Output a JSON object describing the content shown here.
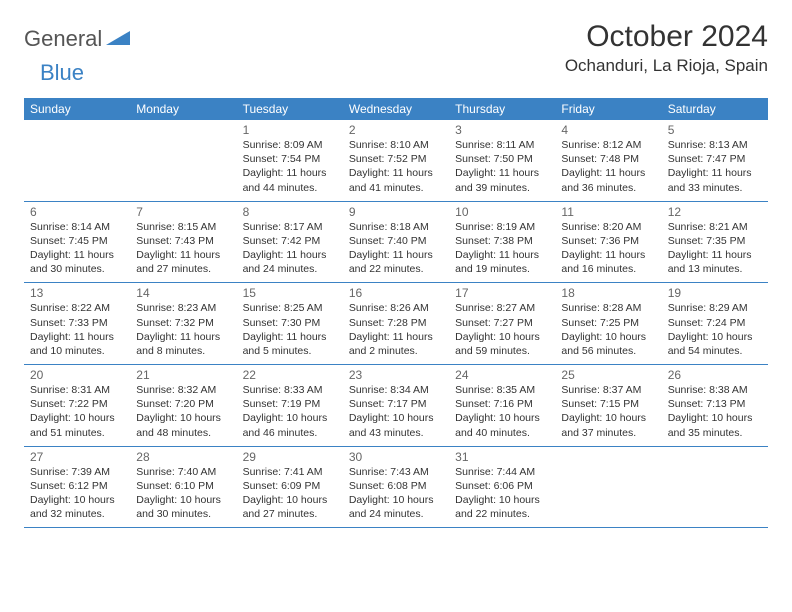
{
  "brand": {
    "part1": "General",
    "part2": "Blue"
  },
  "title": "October 2024",
  "location": "Ochanduri, La Rioja, Spain",
  "colors": {
    "header_bg": "#3b82c4",
    "header_text": "#ffffff",
    "border": "#3b82c4",
    "body_text": "#333333",
    "daynum": "#666666",
    "background": "#ffffff"
  },
  "dayNames": [
    "Sunday",
    "Monday",
    "Tuesday",
    "Wednesday",
    "Thursday",
    "Friday",
    "Saturday"
  ],
  "layout": {
    "columns": 7,
    "rows": 5,
    "leading_blanks": 2
  },
  "days": [
    {
      "n": "1",
      "sr": "8:09 AM",
      "ss": "7:54 PM",
      "dl": "11 hours and 44 minutes."
    },
    {
      "n": "2",
      "sr": "8:10 AM",
      "ss": "7:52 PM",
      "dl": "11 hours and 41 minutes."
    },
    {
      "n": "3",
      "sr": "8:11 AM",
      "ss": "7:50 PM",
      "dl": "11 hours and 39 minutes."
    },
    {
      "n": "4",
      "sr": "8:12 AM",
      "ss": "7:48 PM",
      "dl": "11 hours and 36 minutes."
    },
    {
      "n": "5",
      "sr": "8:13 AM",
      "ss": "7:47 PM",
      "dl": "11 hours and 33 minutes."
    },
    {
      "n": "6",
      "sr": "8:14 AM",
      "ss": "7:45 PM",
      "dl": "11 hours and 30 minutes."
    },
    {
      "n": "7",
      "sr": "8:15 AM",
      "ss": "7:43 PM",
      "dl": "11 hours and 27 minutes."
    },
    {
      "n": "8",
      "sr": "8:17 AM",
      "ss": "7:42 PM",
      "dl": "11 hours and 24 minutes."
    },
    {
      "n": "9",
      "sr": "8:18 AM",
      "ss": "7:40 PM",
      "dl": "11 hours and 22 minutes."
    },
    {
      "n": "10",
      "sr": "8:19 AM",
      "ss": "7:38 PM",
      "dl": "11 hours and 19 minutes."
    },
    {
      "n": "11",
      "sr": "8:20 AM",
      "ss": "7:36 PM",
      "dl": "11 hours and 16 minutes."
    },
    {
      "n": "12",
      "sr": "8:21 AM",
      "ss": "7:35 PM",
      "dl": "11 hours and 13 minutes."
    },
    {
      "n": "13",
      "sr": "8:22 AM",
      "ss": "7:33 PM",
      "dl": "11 hours and 10 minutes."
    },
    {
      "n": "14",
      "sr": "8:23 AM",
      "ss": "7:32 PM",
      "dl": "11 hours and 8 minutes."
    },
    {
      "n": "15",
      "sr": "8:25 AM",
      "ss": "7:30 PM",
      "dl": "11 hours and 5 minutes."
    },
    {
      "n": "16",
      "sr": "8:26 AM",
      "ss": "7:28 PM",
      "dl": "11 hours and 2 minutes."
    },
    {
      "n": "17",
      "sr": "8:27 AM",
      "ss": "7:27 PM",
      "dl": "10 hours and 59 minutes."
    },
    {
      "n": "18",
      "sr": "8:28 AM",
      "ss": "7:25 PM",
      "dl": "10 hours and 56 minutes."
    },
    {
      "n": "19",
      "sr": "8:29 AM",
      "ss": "7:24 PM",
      "dl": "10 hours and 54 minutes."
    },
    {
      "n": "20",
      "sr": "8:31 AM",
      "ss": "7:22 PM",
      "dl": "10 hours and 51 minutes."
    },
    {
      "n": "21",
      "sr": "8:32 AM",
      "ss": "7:20 PM",
      "dl": "10 hours and 48 minutes."
    },
    {
      "n": "22",
      "sr": "8:33 AM",
      "ss": "7:19 PM",
      "dl": "10 hours and 46 minutes."
    },
    {
      "n": "23",
      "sr": "8:34 AM",
      "ss": "7:17 PM",
      "dl": "10 hours and 43 minutes."
    },
    {
      "n": "24",
      "sr": "8:35 AM",
      "ss": "7:16 PM",
      "dl": "10 hours and 40 minutes."
    },
    {
      "n": "25",
      "sr": "8:37 AM",
      "ss": "7:15 PM",
      "dl": "10 hours and 37 minutes."
    },
    {
      "n": "26",
      "sr": "8:38 AM",
      "ss": "7:13 PM",
      "dl": "10 hours and 35 minutes."
    },
    {
      "n": "27",
      "sr": "7:39 AM",
      "ss": "6:12 PM",
      "dl": "10 hours and 32 minutes."
    },
    {
      "n": "28",
      "sr": "7:40 AM",
      "ss": "6:10 PM",
      "dl": "10 hours and 30 minutes."
    },
    {
      "n": "29",
      "sr": "7:41 AM",
      "ss": "6:09 PM",
      "dl": "10 hours and 27 minutes."
    },
    {
      "n": "30",
      "sr": "7:43 AM",
      "ss": "6:08 PM",
      "dl": "10 hours and 24 minutes."
    },
    {
      "n": "31",
      "sr": "7:44 AM",
      "ss": "6:06 PM",
      "dl": "10 hours and 22 minutes."
    }
  ],
  "labels": {
    "sunrise": "Sunrise:",
    "sunset": "Sunset:",
    "daylight": "Daylight:"
  }
}
